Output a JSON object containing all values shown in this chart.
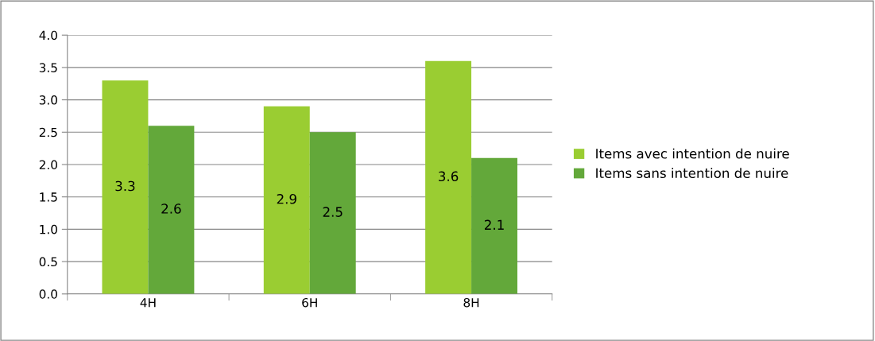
{
  "chart_data": {
    "type": "bar",
    "categories": [
      "4H",
      "6H",
      "8H"
    ],
    "series": [
      {
        "name": "Items avec intention de nuire",
        "color": "#9acd32",
        "values": [
          3.3,
          2.9,
          3.6
        ]
      },
      {
        "name": "Items sans intention de nuire",
        "color": "#63a83a",
        "values": [
          2.6,
          2.5,
          2.1
        ]
      }
    ],
    "ylim": [
      0,
      4
    ],
    "yticks": [
      {
        "value": 0,
        "label": "0.0"
      },
      {
        "value": 0.5,
        "label": "0.5"
      },
      {
        "value": 1,
        "label": "1.0"
      },
      {
        "value": 1.5,
        "label": "1.5"
      },
      {
        "value": 2,
        "label": "2.0"
      },
      {
        "value": 2.5,
        "label": "2.5"
      },
      {
        "value": 3,
        "label": "3.0"
      },
      {
        "value": 3.5,
        "label": "3.5"
      },
      {
        "value": 4,
        "label": "4.0"
      }
    ],
    "grid": "y",
    "legend": "right",
    "data_labels": true
  }
}
